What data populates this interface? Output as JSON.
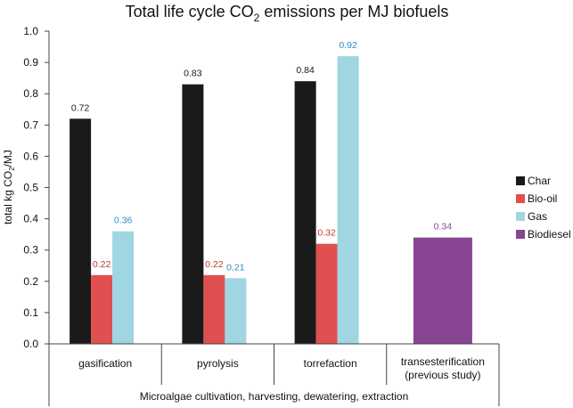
{
  "chart_data": {
    "type": "bar",
    "title_main": "Total life cycle CO",
    "title_sub": "2",
    "title_rest": " emissions per MJ biofuels",
    "ylabel_main": "total kg CO",
    "ylabel_sub": "2",
    "ylabel_rest": "/MJ",
    "ylim": [
      0,
      1.0
    ],
    "yticks": [
      "0.0",
      "0.1",
      "0.2",
      "0.3",
      "0.4",
      "0.5",
      "0.6",
      "0.7",
      "0.8",
      "0.9",
      "1.0"
    ],
    "grid": false,
    "legend_position": "right",
    "categories": [
      {
        "label": "gasification",
        "label2": ""
      },
      {
        "label": "pyrolysis",
        "label2": ""
      },
      {
        "label": "torrefaction",
        "label2": ""
      },
      {
        "label": "transesterification",
        "label2": "(previous study)"
      }
    ],
    "group_label": "Microalgae cultivation, harvesting, dewatering, extraction",
    "series": [
      {
        "name": "Char",
        "color": "#1a1a1a",
        "label_color": "#1a1a1a",
        "values": [
          0.72,
          0.83,
          0.84,
          null
        ],
        "labels": [
          "0.72",
          "0.83",
          "0.84",
          ""
        ]
      },
      {
        "name": "Bio-oil",
        "color": "#e05050",
        "label_color": "#c0392b",
        "values": [
          0.22,
          0.22,
          0.32,
          null
        ],
        "labels": [
          "0.22",
          "0.22",
          "0.32",
          ""
        ]
      },
      {
        "name": "Gas",
        "color": "#9fd6e2",
        "label_color": "#2a8cbf",
        "values": [
          0.36,
          0.21,
          0.92,
          null
        ],
        "labels": [
          "0.36",
          "0.21",
          "0.92",
          ""
        ]
      },
      {
        "name": "Biodiesel",
        "color": "#874592",
        "label_color": "#874592",
        "values": [
          null,
          null,
          null,
          0.34
        ],
        "labels": [
          "",
          "",
          "",
          "0.34"
        ]
      }
    ]
  }
}
